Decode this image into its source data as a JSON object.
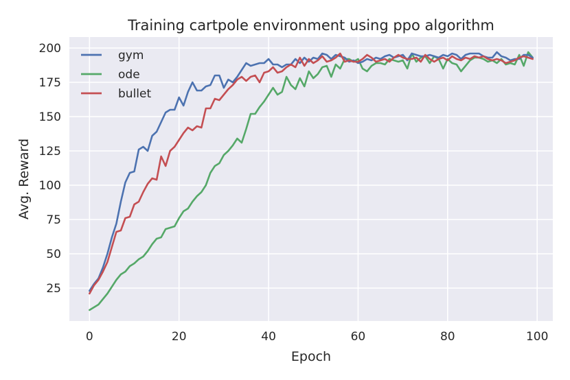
{
  "chart_data": {
    "type": "line",
    "title": "Training cartpole environment using ppo algorithm",
    "xlabel": "Epoch",
    "ylabel": "Avg. Reward",
    "xlim": [
      -4.5,
      103.5
    ],
    "ylim": [
      1,
      208
    ],
    "xticks": [
      0,
      20,
      40,
      60,
      80,
      100
    ],
    "yticks": [
      25,
      50,
      75,
      100,
      125,
      150,
      175,
      200
    ],
    "grid": true,
    "legend_position": "top-left",
    "series": [
      {
        "name": "gym",
        "color": "#4c72b0",
        "values": [
          23,
          28,
          32,
          40,
          50,
          62,
          72,
          88,
          102,
          109,
          110,
          126,
          128,
          125,
          136,
          139,
          146,
          153,
          155,
          155,
          164,
          158,
          168,
          175,
          169,
          169,
          172,
          173,
          180,
          180,
          171,
          177,
          175,
          179,
          184,
          189,
          187,
          188,
          189,
          189,
          192,
          188,
          188,
          186,
          188,
          188,
          192,
          189,
          193,
          190,
          193,
          192,
          196,
          195,
          192,
          195,
          194,
          193,
          190,
          191,
          189,
          190,
          192,
          191,
          193,
          192,
          194,
          195,
          193,
          194,
          195,
          191,
          196,
          195,
          194,
          194,
          195,
          194,
          193,
          195,
          194,
          196,
          195,
          192,
          195,
          196,
          196,
          196,
          194,
          193,
          193,
          197,
          194,
          193,
          191,
          192,
          192,
          195,
          195,
          193
        ]
      },
      {
        "name": "ode",
        "color": "#55a868",
        "values": [
          9,
          11,
          13,
          17,
          21,
          26,
          31,
          35,
          37,
          41,
          43,
          46,
          48,
          52,
          57,
          61,
          62,
          68,
          69,
          70,
          76,
          81,
          83,
          88,
          92,
          95,
          100,
          109,
          114,
          116,
          122,
          125,
          129,
          134,
          131,
          141,
          152,
          152,
          157,
          161,
          166,
          171,
          166,
          168,
          179,
          173,
          170,
          178,
          172,
          183,
          178,
          181,
          186,
          187,
          179,
          188,
          185,
          192,
          192,
          190,
          192,
          185,
          183,
          187,
          189,
          189,
          188,
          192,
          191,
          190,
          191,
          185,
          196,
          190,
          193,
          194,
          189,
          194,
          192,
          185,
          192,
          189,
          188,
          183,
          187,
          191,
          193,
          193,
          192,
          190,
          191,
          189,
          192,
          188,
          189,
          188,
          195,
          187,
          197,
          193
        ]
      },
      {
        "name": "bullet",
        "color": "#c44e52",
        "values": [
          21,
          27,
          31,
          37,
          44,
          55,
          66,
          67,
          76,
          77,
          86,
          88,
          95,
          101,
          105,
          104,
          121,
          114,
          125,
          128,
          133,
          138,
          142,
          140,
          143,
          142,
          156,
          156,
          163,
          162,
          166,
          170,
          173,
          177,
          179,
          176,
          179,
          180,
          175,
          182,
          183,
          186,
          182,
          183,
          186,
          188,
          186,
          193,
          187,
          192,
          189,
          191,
          194,
          190,
          191,
          193,
          196,
          190,
          191,
          190,
          190,
          192,
          195,
          193,
          190,
          191,
          192,
          190,
          193,
          195,
          193,
          192,
          192,
          193,
          190,
          195,
          192,
          190,
          192,
          193,
          191,
          194,
          192,
          191,
          193,
          192,
          194,
          193,
          194,
          192,
          191,
          192,
          191,
          189,
          190,
          191,
          193,
          194,
          193,
          192
        ]
      }
    ]
  }
}
